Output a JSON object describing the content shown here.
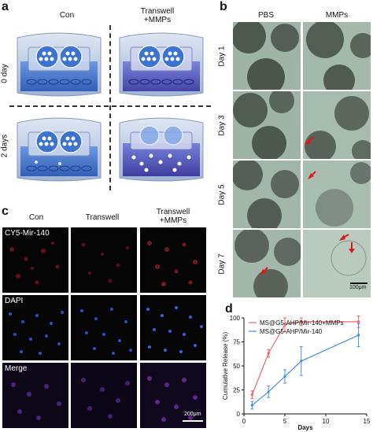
{
  "panel_a": {
    "label": "a",
    "col_headers": [
      "Con",
      "Transwell\n+MMPs"
    ],
    "row_labels": [
      "0 day",
      "2 days"
    ]
  },
  "panel_b": {
    "label": "b",
    "col_headers": [
      "PBS",
      "MMPs"
    ],
    "row_labels": [
      "Day 1",
      "Day 3",
      "Day 5",
      "Day 7"
    ],
    "scale_bar": "100μm"
  },
  "panel_c": {
    "label": "c",
    "col_headers": [
      "Con",
      "Transwell",
      "Transwell\n+MMPs"
    ],
    "row_labels": [
      "CY5-Mir-140",
      "DAPI",
      "Merge"
    ],
    "scale_bar": "200μm"
  },
  "panel_d": {
    "label": "d",
    "colors": {
      "series1": "#e8696b",
      "series2": "#4a90d9"
    },
    "chart_data": {
      "type": "line",
      "xlabel": "Days",
      "ylabel": "Cumulative Release (%)",
      "xlim": [
        0,
        15
      ],
      "ylim": [
        0,
        100
      ],
      "xticks": [
        0,
        5,
        10,
        15
      ],
      "yticks": [
        0,
        25,
        50,
        75,
        100
      ],
      "legend_position": "top-left",
      "series": [
        {
          "name": "MS@G5-AHP/Mir-140+MMPs",
          "x": [
            1,
            3,
            5,
            7,
            14
          ],
          "y": [
            20,
            63,
            93,
            96,
            96
          ],
          "err": [
            4,
            4,
            7,
            4,
            6
          ]
        },
        {
          "name": "MS@G5-AHP/Mir-140",
          "x": [
            1,
            3,
            5,
            7,
            14
          ],
          "y": [
            9,
            23,
            39,
            55,
            82
          ],
          "err": [
            4,
            6,
            7,
            15,
            12
          ]
        }
      ]
    }
  }
}
